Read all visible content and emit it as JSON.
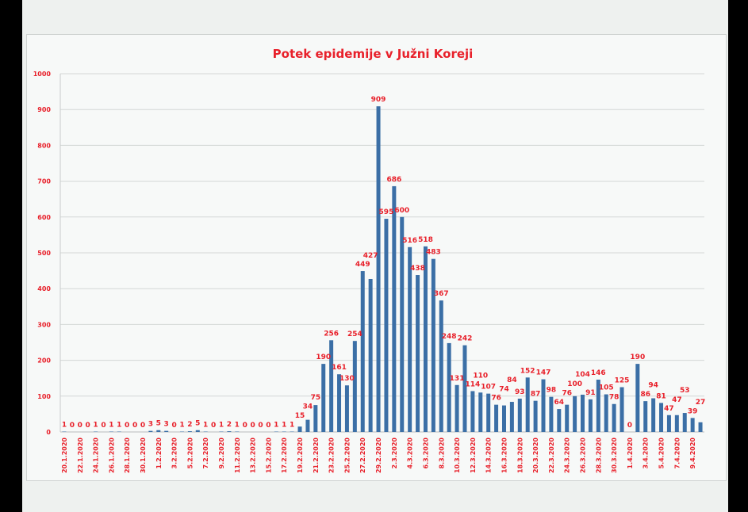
{
  "chart_data": {
    "type": "bar",
    "title": "Potek epidemije v Južni Koreji",
    "xlabel": "",
    "ylabel": "",
    "ylim": [
      0,
      1000
    ],
    "yticks": [
      0,
      100,
      200,
      300,
      400,
      500,
      600,
      700,
      800,
      900,
      1000
    ],
    "grid": true,
    "bar_color": "#3b6fa6",
    "label_color": "#e8202a",
    "categories": [
      "20.1.2020",
      "21.1.2020",
      "22.1.2020",
      "23.1.2020",
      "24.1.2020",
      "25.1.2020",
      "26.1.2020",
      "27.1.2020",
      "28.1.2020",
      "29.1.2020",
      "30.1.2020",
      "31.1.2020",
      "1.2.2020",
      "2.2.2020",
      "3.2.2020",
      "4.2.2020",
      "5.2.2020",
      "6.2.2020",
      "7.2.2020",
      "8.2.2020",
      "9.2.2020",
      "10.2.2020",
      "11.2.2020",
      "12.2.2020",
      "13.2.2020",
      "14.2.2020",
      "15.2.2020",
      "16.2.2020",
      "17.2.2020",
      "18.2.2020",
      "19.2.2020",
      "20.2.2020",
      "21.2.2020",
      "22.2.2020",
      "23.2.2020",
      "24.2.2020",
      "25.2.2020",
      "26.2.2020",
      "27.2.2020",
      "28.2.2020",
      "29.2.2020",
      "1.3.2020",
      "2.3.2020",
      "3.3.2020",
      "4.3.2020",
      "5.3.2020",
      "6.3.2020",
      "7.3.2020",
      "8.3.2020",
      "9.3.2020",
      "10.3.2020",
      "11.3.2020",
      "12.3.2020",
      "13.3.2020",
      "14.3.2020",
      "15.3.2020",
      "16.3.2020",
      "17.3.2020",
      "18.3.2020",
      "19.3.2020",
      "20.3.2020",
      "21.3.2020",
      "22.3.2020",
      "23.3.2020",
      "24.3.2020",
      "25.3.2020",
      "26.3.2020",
      "27.3.2020",
      "28.3.2020",
      "29.3.2020",
      "30.3.2020",
      "31.3.2020",
      "1.4.2020",
      "2.4.2020",
      "3.4.2020",
      "4.4.2020",
      "5.4.2020",
      "6.4.2020",
      "7.4.2020",
      "8.4.2020",
      "9.4.2020",
      "10.4.2020"
    ],
    "values": [
      1,
      0,
      0,
      0,
      1,
      0,
      1,
      1,
      0,
      0,
      0,
      3,
      5,
      3,
      0,
      1,
      2,
      5,
      1,
      0,
      1,
      2,
      1,
      0,
      0,
      0,
      0,
      1,
      1,
      1,
      15,
      34,
      75,
      190,
      256,
      161,
      130,
      254,
      449,
      427,
      909,
      595,
      686,
      600,
      516,
      438,
      518,
      483,
      367,
      248,
      131,
      242,
      114,
      110,
      107,
      76,
      74,
      84,
      93,
      152,
      87,
      147,
      98,
      64,
      76,
      100,
      104,
      91,
      146,
      105,
      78,
      125,
      0,
      190,
      86,
      94,
      81,
      47,
      47,
      53,
      39,
      27
    ],
    "x_tick_labels_every": 2
  }
}
